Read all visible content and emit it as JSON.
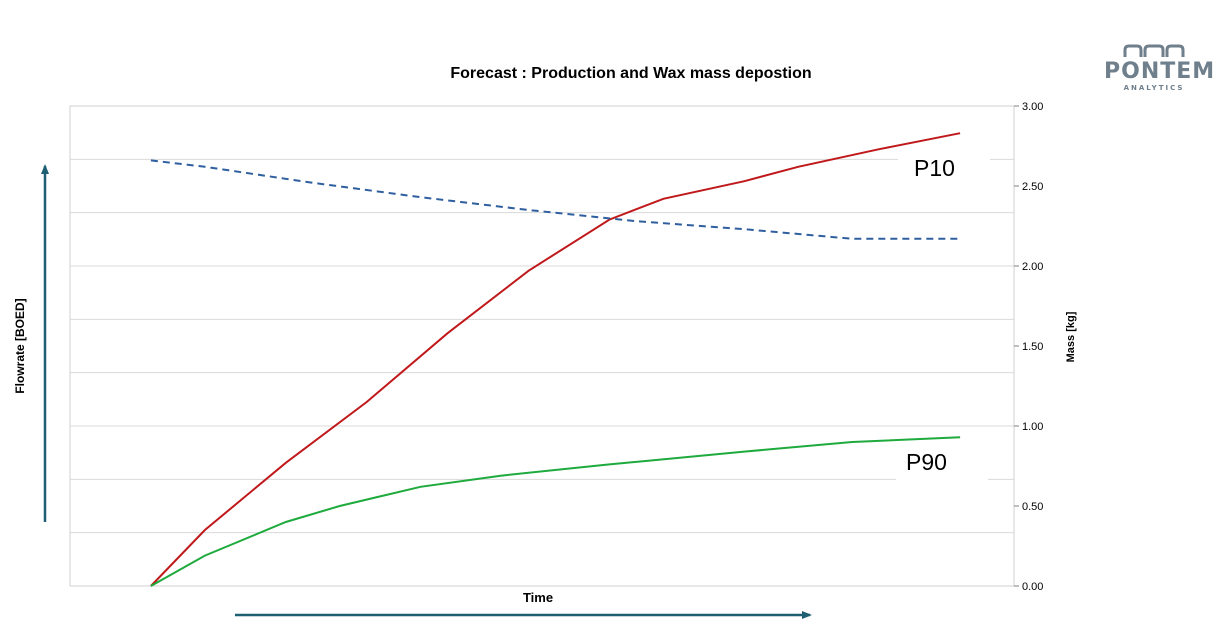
{
  "chart_data": {
    "type": "line",
    "title": "Forecast : Production and Wax mass depostion",
    "xlabel": "Time",
    "ylabel_left": "Flowrate [BOED]",
    "ylabel_right": "Mass [kg]",
    "y_right_ticks": [
      "0.00",
      "0.50",
      "1.00",
      "1.50",
      "2.00",
      "2.50",
      "3.00"
    ],
    "ylim_right": [
      0,
      3
    ],
    "xlim": [
      0,
      17.5
    ],
    "grid": true,
    "legend": "none",
    "series": [
      {
        "name": "P10",
        "axis": "right",
        "style": "solid",
        "color": "#c0191c",
        "x": [
          1.5,
          2.5,
          4,
          5.5,
          7,
          8.5,
          10,
          11,
          12.5,
          13.5,
          15,
          16.5
        ],
        "values": [
          0.0,
          0.35,
          0.77,
          1.15,
          1.58,
          1.97,
          2.29,
          2.42,
          2.53,
          2.62,
          2.73,
          2.83
        ]
      },
      {
        "name": "P90",
        "axis": "right",
        "style": "solid",
        "color": "#1eaa3c",
        "x": [
          1.5,
          2.5,
          4,
          5,
          6.5,
          8,
          10,
          12.5,
          14.5,
          16.5
        ],
        "values": [
          0.0,
          0.19,
          0.4,
          0.5,
          0.62,
          0.69,
          0.76,
          0.84,
          0.9,
          0.93
        ]
      },
      {
        "axis": "left",
        "style": "dashed",
        "color": "#2f5f9e",
        "x": [
          1.5,
          2.5,
          4.5,
          6.5,
          8.5,
          10.5,
          12.5,
          14.5,
          16.5
        ],
        "values": [
          2.66,
          2.62,
          2.52,
          2.43,
          2.35,
          2.28,
          2.23,
          2.17,
          2.17
        ]
      }
    ],
    "annotations": [
      "P10",
      "P90"
    ],
    "colors": {
      "grid": "#d9d9d9",
      "arrow": "#1f5f72",
      "text": "#000000"
    }
  },
  "logo": {
    "name": "PONTEM",
    "tagline": "ANALYTICS",
    "color": "#6f7f8c",
    "accent": "#3cc0c8"
  }
}
